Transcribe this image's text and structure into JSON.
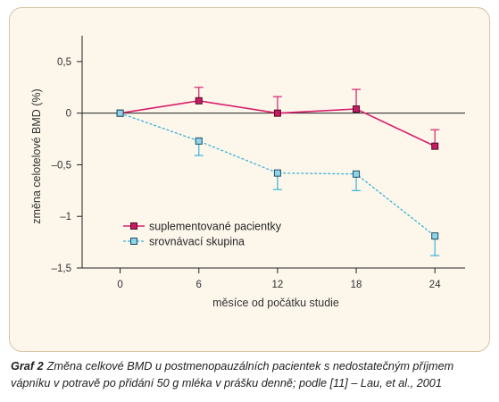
{
  "chart_data": {
    "type": "line",
    "xlabel": "měsíce od počátku studie",
    "ylabel": "změna celotelové BMD (%)",
    "x": [
      0,
      6,
      12,
      18,
      24
    ],
    "xlim": [
      -2.9,
      26.3
    ],
    "ylim": [
      -1.5,
      0.75
    ],
    "xticks": [
      0,
      6,
      12,
      18,
      24
    ],
    "xtick_labels": [
      "0",
      "6",
      "12",
      "18",
      "24"
    ],
    "yticks": [
      0.5,
      0,
      -0.5,
      -1,
      -1.5
    ],
    "ytick_labels": [
      "0,5",
      "0",
      "–0,5",
      "–1",
      "–1,5"
    ],
    "grid": false,
    "reference_line_y": 0,
    "legend_position": "bottom-left",
    "series": [
      {
        "name": "suplementované pacientky",
        "values": [
          0,
          0.12,
          0,
          0.04,
          -0.32
        ],
        "error_plus": [
          null,
          0.13,
          0.16,
          0.19,
          0.16
        ],
        "dashed": false,
        "color": "#d8206c",
        "marker_fill": "#c81a63",
        "marker_edge": "#4a0f26"
      },
      {
        "name": "srovnávací skupina",
        "values": [
          0,
          -0.27,
          -0.58,
          -0.59,
          -1.19
        ],
        "error_minus": [
          null,
          0.14,
          0.16,
          0.16,
          0.19
        ],
        "dashed": true,
        "color": "#3db3da",
        "marker_fill": "#8fd4ea",
        "marker_edge": "#1d4e62"
      }
    ]
  },
  "panel": {
    "background": "#fcf6eb",
    "border": "#d3c5a5",
    "axis_color": "#222222"
  },
  "caption": {
    "label": "Graf 2",
    "lines": [
      "Změna celkové BMD u postmenopauzálních pacientek s nedostatečným příjmem",
      "vápníku v potravě po přidání 50 g mléka v prášku denně; podle [11] – Lau, et al., 2001"
    ]
  }
}
